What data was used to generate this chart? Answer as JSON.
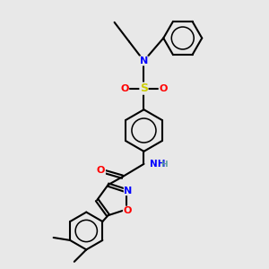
{
  "background_color": "#e8e8e8",
  "line_color": "#000000",
  "bond_width": 1.5,
  "figsize": [
    3.0,
    3.0
  ],
  "dpi": 100,
  "atom_colors": {
    "N": "#0000ff",
    "O": "#ff0000",
    "S": "#cccc00",
    "C": "#000000",
    "H": "#5f9ea0"
  }
}
